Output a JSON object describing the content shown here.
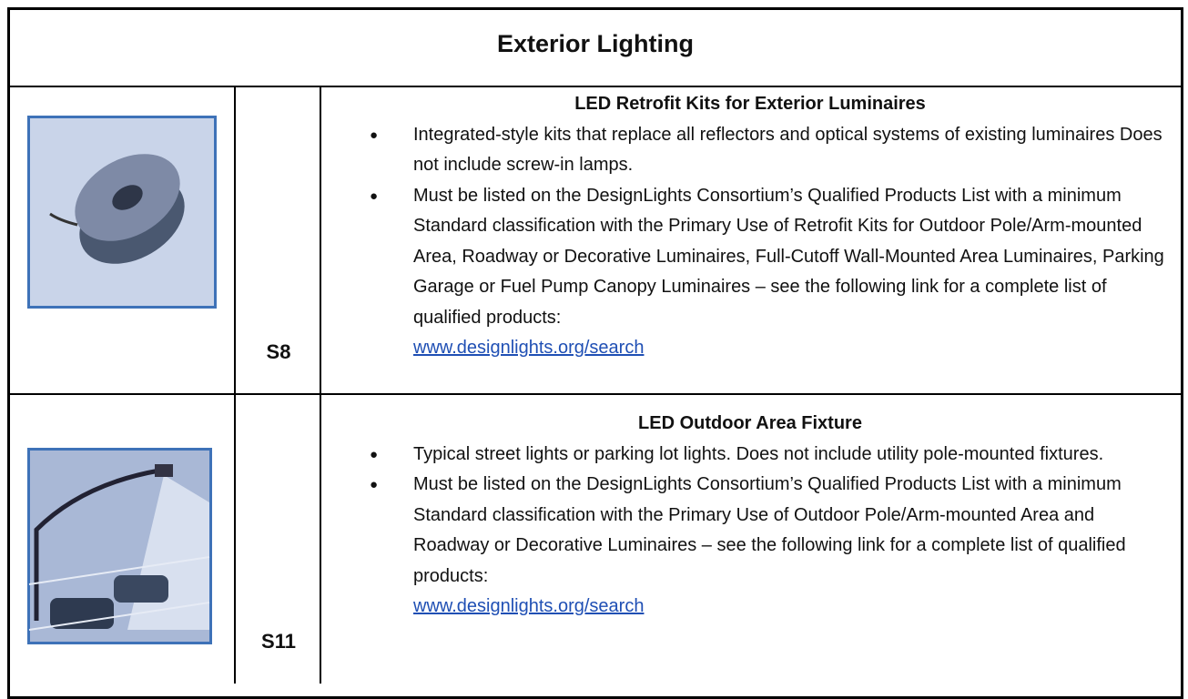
{
  "header": {
    "title": "Exterior Lighting"
  },
  "rows": [
    {
      "code": "S8",
      "heading": "LED Retrofit Kits for Exterior Luminaires",
      "bullets": [
        "Integrated-style kits that replace all reflectors and optical systems of existing luminaires Does not include screw-in lamps.",
        "Must be listed on the DesignLights Consortium’s Qualified Products List with a minimum Standard classification with the Primary Use of Retrofit Kits for Outdoor Pole/Arm-mounted Area, Roadway or Decorative Luminaires, Full-Cutoff Wall-Mounted Area Luminaires, Parking Garage or Fuel Pump Canopy Luminaires – see the following link for a complete list of qualified products:"
      ],
      "link": "www.designlights.org/search"
    },
    {
      "code": "S11",
      "heading": "LED Outdoor Area Fixture",
      "bullets": [
        "Typical street lights or parking lot lights. Does not include utility pole-mounted fixtures.",
        "Must be listed on the DesignLights Consortium’s Qualified Products List with a minimum Standard classification with the Primary Use of Outdoor Pole/Arm-mounted Area and Roadway or Decorative Luminaires – see the following link for a complete list of qualified products:"
      ],
      "link": "www.designlights.org/search"
    }
  ]
}
